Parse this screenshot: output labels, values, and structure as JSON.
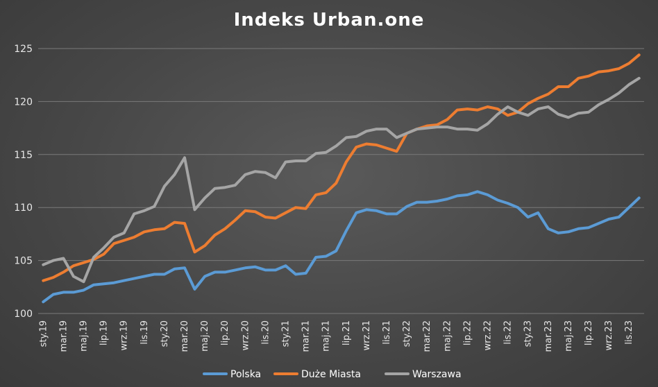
{
  "chart_data": {
    "type": "line",
    "title": "Indeks Urban.one",
    "xlabel": "",
    "ylabel": "",
    "ylim": [
      100,
      125
    ],
    "yticks": [
      100,
      105,
      110,
      115,
      120,
      125
    ],
    "grid": "horizontal",
    "legend_position": "bottom",
    "x": [
      "sty.19",
      "lut.19",
      "mar.19",
      "kwi.19",
      "maj.19",
      "cze.19",
      "lip.19",
      "sie.19",
      "wrz.19",
      "paź.19",
      "lis.19",
      "gru.19",
      "sty.20",
      "lut.20",
      "mar.20",
      "kwi.20",
      "maj.20",
      "cze.20",
      "lip.20",
      "sie.20",
      "wrz.20",
      "paź.20",
      "lis.20",
      "gru.20",
      "sty.21",
      "lut.21",
      "mar.21",
      "kwi.21",
      "maj.21",
      "cze.21",
      "lip.21",
      "sie.21",
      "wrz.21",
      "paź.21",
      "lis.21",
      "gru.21",
      "sty.22",
      "lut.22",
      "mar.22",
      "kwi.22",
      "maj.22",
      "cze.22",
      "lip.22",
      "sie.22",
      "wrz.22",
      "paź.22",
      "lis.22",
      "gru.22",
      "sty.23",
      "lut.23",
      "mar.23",
      "kwi.23",
      "maj.23",
      "cze.23",
      "lip.23",
      "sie.23",
      "wrz.23",
      "paź.23",
      "lis.23",
      "gru.23"
    ],
    "x_tick_labels": [
      "sty.19",
      "mar.19",
      "maj.19",
      "lip.19",
      "wrz.19",
      "lis.19",
      "sty.20",
      "mar.20",
      "maj.20",
      "lip.20",
      "wrz.20",
      "lis.20",
      "sty.21",
      "mar.21",
      "maj.21",
      "lip.21",
      "wrz.21",
      "lis.21",
      "sty.22",
      "mar.22",
      "maj.22",
      "lip.22",
      "wrz.22",
      "lis.22",
      "sty.23",
      "mar.23",
      "maj.23",
      "lip.23",
      "wrz.23",
      "lis.23"
    ],
    "series": [
      {
        "name": "Polska",
        "color": "#5b9bd5",
        "values": [
          101.1,
          101.8,
          102.0,
          102.0,
          102.2,
          102.7,
          102.8,
          102.9,
          103.1,
          103.3,
          103.5,
          103.7,
          103.7,
          104.2,
          104.3,
          102.3,
          103.5,
          103.9,
          103.9,
          104.1,
          104.3,
          104.4,
          104.1,
          104.1,
          104.5,
          103.7,
          103.8,
          105.3,
          105.4,
          105.9,
          107.8,
          109.5,
          109.8,
          109.7,
          109.4,
          109.4,
          110.1,
          110.5,
          110.5,
          110.6,
          110.8,
          111.1,
          111.2,
          111.5,
          111.2,
          110.7,
          110.4,
          110.0,
          109.1,
          109.5,
          108.0,
          107.6,
          107.7,
          108.0,
          108.1,
          108.5,
          108.9,
          109.1,
          110.0,
          110.9
        ]
      },
      {
        "name": "Duże Miasta",
        "color": "#ed7d31",
        "values": [
          103.1,
          103.4,
          103.9,
          104.5,
          104.8,
          105.1,
          105.6,
          106.6,
          106.9,
          107.2,
          107.7,
          107.9,
          108.0,
          108.6,
          108.5,
          105.8,
          106.4,
          107.4,
          108.0,
          108.8,
          109.7,
          109.6,
          109.1,
          109.0,
          109.5,
          110.0,
          109.9,
          111.2,
          111.4,
          112.3,
          114.3,
          115.7,
          116.0,
          115.9,
          115.6,
          115.3,
          117.0,
          117.4,
          117.7,
          117.8,
          118.3,
          119.2,
          119.3,
          119.2,
          119.5,
          119.3,
          118.7,
          119.0,
          119.8,
          120.3,
          120.7,
          121.4,
          121.4,
          122.2,
          122.4,
          122.8,
          122.9,
          123.1,
          123.6,
          124.4
        ]
      },
      {
        "name": "Warszawa",
        "color": "#a5a5a5",
        "values": [
          104.6,
          105.0,
          105.2,
          103.5,
          103.0,
          105.3,
          106.2,
          107.2,
          107.6,
          109.4,
          109.7,
          110.1,
          112.0,
          113.1,
          114.7,
          109.8,
          110.9,
          111.8,
          111.9,
          112.1,
          113.1,
          113.4,
          113.3,
          112.8,
          114.3,
          114.4,
          114.4,
          115.1,
          115.2,
          115.8,
          116.6,
          116.7,
          117.2,
          117.4,
          117.4,
          116.6,
          117.0,
          117.4,
          117.5,
          117.6,
          117.6,
          117.4,
          117.4,
          117.3,
          117.9,
          118.8,
          119.5,
          119.0,
          118.7,
          119.3,
          119.5,
          118.8,
          118.5,
          118.9,
          119.0,
          119.7,
          120.2,
          120.8,
          121.6,
          122.2
        ]
      }
    ]
  }
}
